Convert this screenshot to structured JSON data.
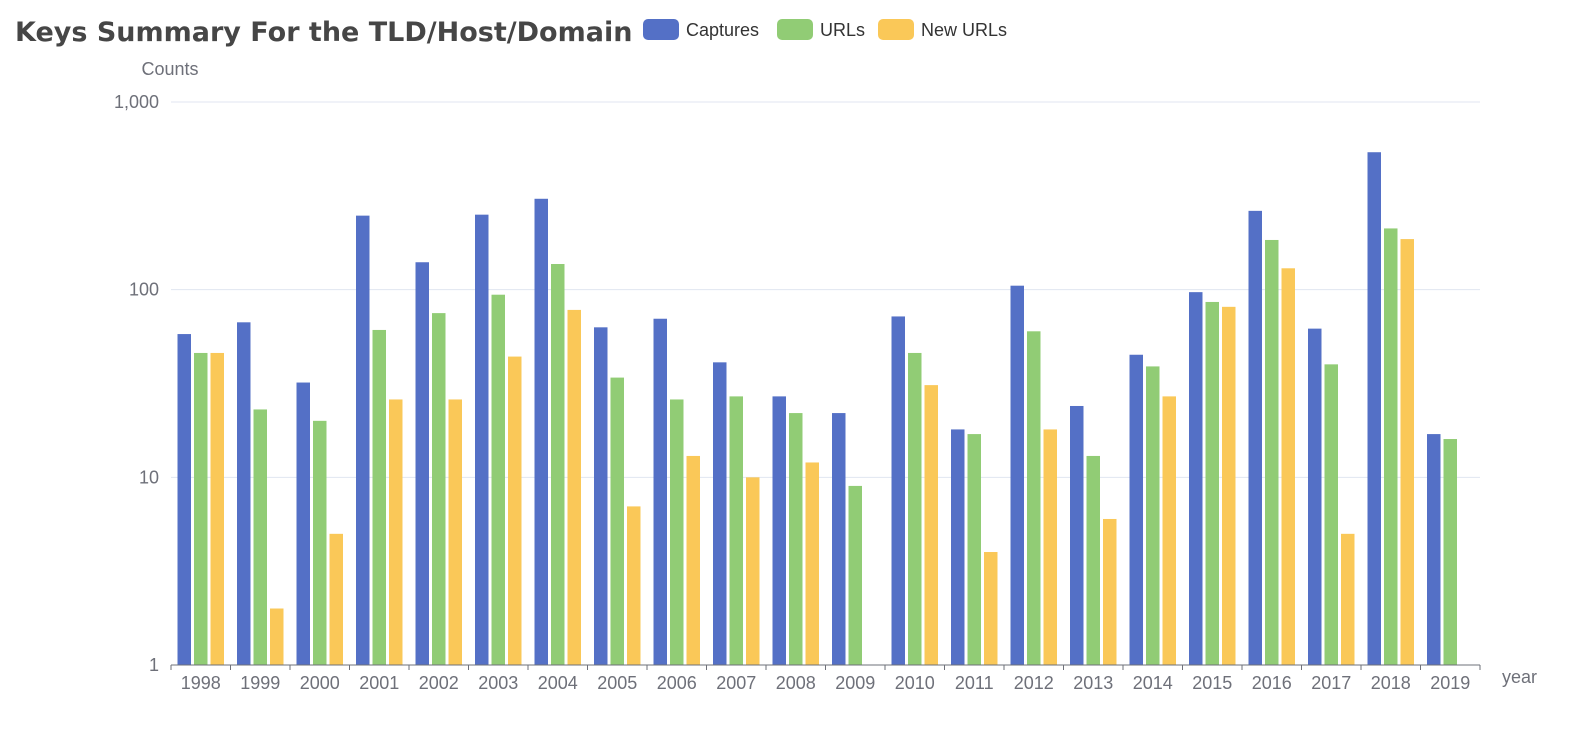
{
  "chart_data": {
    "type": "bar",
    "title": "Keys Summary For the TLD/Host/Domain",
    "ylabel": "Counts",
    "xlabel": "year",
    "yscale": "log",
    "ylim": [
      1,
      1000
    ],
    "yticks": [
      1,
      10,
      100,
      1000
    ],
    "ytick_labels": [
      "1",
      "10",
      "100",
      "1,000"
    ],
    "grid": "horizontal",
    "legend_position": "top",
    "categories": [
      "1998",
      "1999",
      "2000",
      "2001",
      "2002",
      "2003",
      "2004",
      "2005",
      "2006",
      "2007",
      "2008",
      "2009",
      "2010",
      "2011",
      "2012",
      "2013",
      "2014",
      "2015",
      "2016",
      "2017",
      "2018",
      "2019"
    ],
    "series": [
      {
        "name": "Captures",
        "color": "#5470c6",
        "values": [
          58,
          67,
          32,
          248,
          140,
          251,
          305,
          63,
          70,
          41,
          27,
          22,
          72,
          18,
          105,
          24,
          45,
          97,
          263,
          62,
          540,
          17
        ]
      },
      {
        "name": "URLs",
        "color": "#91cc75",
        "values": [
          46,
          23,
          20,
          61,
          75,
          94,
          137,
          34,
          26,
          27,
          22,
          9,
          46,
          17,
          60,
          13,
          39,
          86,
          184,
          40,
          212,
          16
        ]
      },
      {
        "name": "New URLs",
        "color": "#fac858",
        "values": [
          46,
          2,
          5,
          26,
          26,
          44,
          78,
          7,
          13,
          10,
          12,
          null,
          31,
          4,
          18,
          6,
          27,
          81,
          130,
          5,
          186,
          null
        ]
      }
    ]
  }
}
